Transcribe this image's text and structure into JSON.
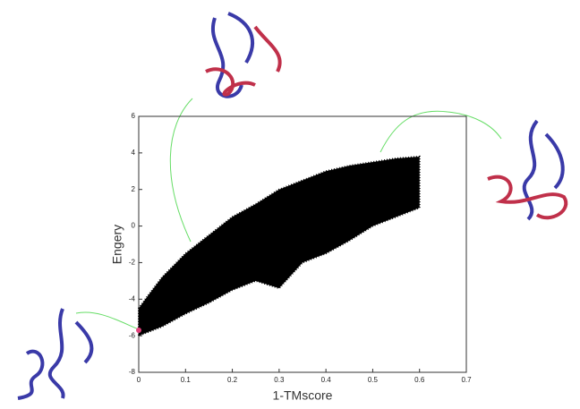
{
  "chart_data": {
    "type": "band",
    "x_label": "1-TMscore",
    "y_label": "Engery",
    "x": [
      0,
      0.02,
      0.05,
      0.1,
      0.15,
      0.2,
      0.25,
      0.3,
      0.35,
      0.4,
      0.45,
      0.5,
      0.55,
      0.6
    ],
    "upper": [
      -4.5,
      -3.8,
      -2.8,
      -1.5,
      -0.5,
      0.5,
      1.2,
      2,
      2.5,
      3,
      3.3,
      3.5,
      3.7,
      3.8
    ],
    "lower": [
      -6,
      -5.8,
      -5.5,
      -4.8,
      -4.2,
      -3.5,
      -3,
      -3.4,
      -2,
      -1.5,
      -0.8,
      0,
      0.5,
      1
    ],
    "color": "#000000",
    "highlight": {
      "x": 0,
      "y": -5.7,
      "color": "#e0407a"
    },
    "xlim": [
      0,
      0.7
    ],
    "ylim": [
      -8,
      6
    ],
    "xticks": [
      0,
      0.1,
      0.2,
      0.3,
      0.4,
      0.5,
      0.6,
      0.7
    ],
    "yticks": [
      -8,
      -6,
      -4,
      -2,
      0,
      2,
      4,
      6
    ]
  }
}
